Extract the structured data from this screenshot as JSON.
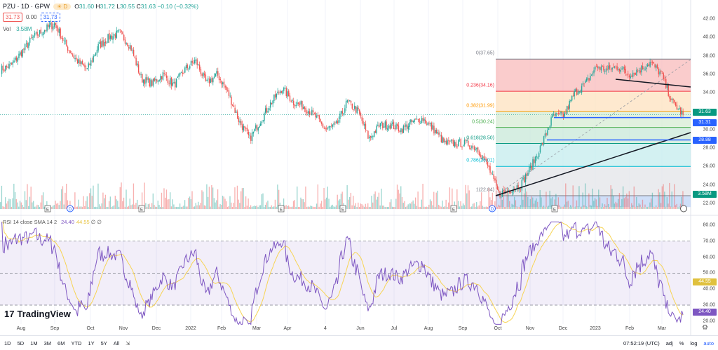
{
  "header": {
    "symbol": "PZU · 1D · GPW",
    "session_badge": "D",
    "open_label": "O",
    "open": "31.60",
    "high_label": "H",
    "high": "31.72",
    "low_label": "L",
    "low": "30.55",
    "close_label": "C",
    "close": "31.63",
    "change": "−0.10 (−0.32%)",
    "sell_price": "31.73",
    "spread": "0.00",
    "buy_price": "31.73",
    "vol_label": "Vol",
    "vol_value": "3.58M"
  },
  "price_axis": [
    "42.00",
    "40.00",
    "38.00",
    "36.00",
    "34.00",
    "30.00",
    "28.00",
    "26.00",
    "24.00",
    "22.00"
  ],
  "price_labels": {
    "last": "31.63",
    "line1": "31.31",
    "line2": "28.88",
    "volume": "3.58M"
  },
  "fib": [
    {
      "label": "0(37.65)",
      "price": 37.65,
      "color": "#787b86"
    },
    {
      "label": "0.236(34.16)",
      "price": 34.16,
      "color": "#f23645"
    },
    {
      "label": "0.382(31.99)",
      "price": 31.99,
      "color": "#ff9800"
    },
    {
      "label": "0.5(30.24)",
      "price": 30.24,
      "color": "#4caf50"
    },
    {
      "label": "0.618(28.50)",
      "price": 28.5,
      "color": "#089981"
    },
    {
      "label": "0.786(26.01)",
      "price": 26.01,
      "color": "#00bcd4"
    },
    {
      "label": "1(22.84)",
      "price": 22.84,
      "color": "#787b86"
    }
  ],
  "rsi": {
    "legend": "RSI 14 close SMA 14 2",
    "rsi_value": "24.40",
    "sma_value": "44.55",
    "extra": "∅ ∅",
    "axis": [
      "80.00",
      "70.00",
      "60.00",
      "50.00",
      "40.00",
      "30.00",
      "20.00"
    ]
  },
  "events": {
    "earnings": "E",
    "dividend": "D"
  },
  "time_axis": [
    "Aug",
    "Sep",
    "Oct",
    "Nov",
    "Dec",
    "2022",
    "Feb",
    "Mar",
    "Apr",
    "4",
    "Jun",
    "Jul",
    "Aug",
    "Sep",
    "Oct",
    "Nov",
    "Dec",
    "2023",
    "Feb",
    "Mar"
  ],
  "toolbar": {
    "ranges": [
      "1D",
      "5D",
      "1M",
      "3M",
      "6M",
      "YTD",
      "1Y",
      "5Y",
      "All"
    ],
    "clock": "07:52:19 (UTC)",
    "adj": "adj",
    "percent": "%",
    "log": "log",
    "auto": "auto"
  },
  "logo": "TradingView",
  "chart_data": {
    "type": "candlestick",
    "period": "Aug 2021 – Mar 2023",
    "close_waypoints": [
      36.5,
      37,
      38.5,
      40,
      40.8,
      41.5,
      39.2,
      37.5,
      36.5,
      39,
      40,
      40.5,
      39,
      35.5,
      35,
      36,
      34.8,
      36.5,
      37.5,
      35,
      36,
      34,
      31,
      29,
      31,
      33,
      34.5,
      33,
      32.5,
      31.5,
      30,
      30.5,
      33,
      32,
      29,
      30.5,
      30.5,
      30,
      30.8,
      31.2,
      30,
      28.5,
      28.5,
      28.5,
      28,
      26,
      23,
      23.5,
      24,
      26,
      28.5,
      31.5,
      31.5,
      34,
      35,
      36.8,
      36.5,
      36.8,
      36,
      36.5,
      37.3,
      36,
      33,
      31.63
    ],
    "ylim": [
      20,
      43
    ],
    "last_close": 31.63,
    "last_volume": "3.58M"
  }
}
